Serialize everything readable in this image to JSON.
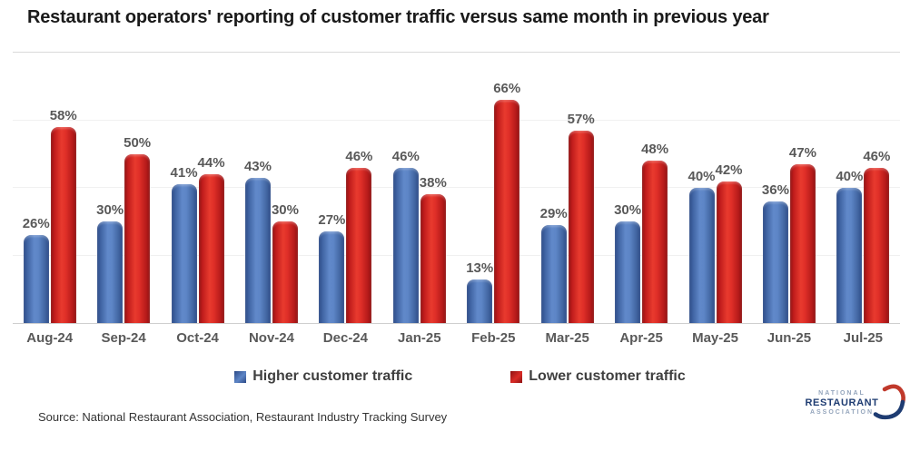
{
  "title": "Restaurant operators' reporting of customer traffic versus same month in previous year",
  "chart_data": {
    "type": "bar",
    "title": "Restaurant operators' reporting of customer traffic versus same month in previous year",
    "categories": [
      "Aug-24",
      "Sep-24",
      "Oct-24",
      "Nov-24",
      "Dec-24",
      "Jan-25",
      "Feb-25",
      "Mar-25",
      "Apr-25",
      "May-25",
      "Jun-25",
      "Jul-25"
    ],
    "series": [
      {
        "name": "Higher customer traffic",
        "key": "higher",
        "color": "#4a72b0",
        "values": [
          26,
          30,
          41,
          43,
          27,
          46,
          13,
          29,
          30,
          40,
          36,
          40
        ]
      },
      {
        "name": "Lower customer traffic",
        "key": "lower",
        "color": "#cc2222",
        "values": [
          58,
          50,
          44,
          30,
          46,
          38,
          66,
          57,
          48,
          42,
          47,
          46
        ]
      }
    ],
    "value_suffix": "%",
    "xlabel": "",
    "ylabel": "",
    "ylim": [
      0,
      80
    ],
    "grid_step": 20,
    "grid": "horizontal faint gridlines every 20%, y-axis tick labels hidden",
    "data_labels": "percentage shown above every bar",
    "legend_position": "bottom-center"
  },
  "source": "Source: National Restaurant Association, Restaurant Industry Tracking Survey",
  "logo": {
    "line1": "NATIONAL",
    "line2": "RESTAURANT",
    "line3": "ASSOCIATION",
    "swoosh_red": "#c0392b",
    "swoosh_blue": "#1e3c72"
  },
  "colors": {
    "bar_higher": "#4a72b0",
    "bar_lower": "#cc2222",
    "label_text": "#595959",
    "gridline": "#f0f0f0",
    "axis_line": "#cfcfcf"
  }
}
